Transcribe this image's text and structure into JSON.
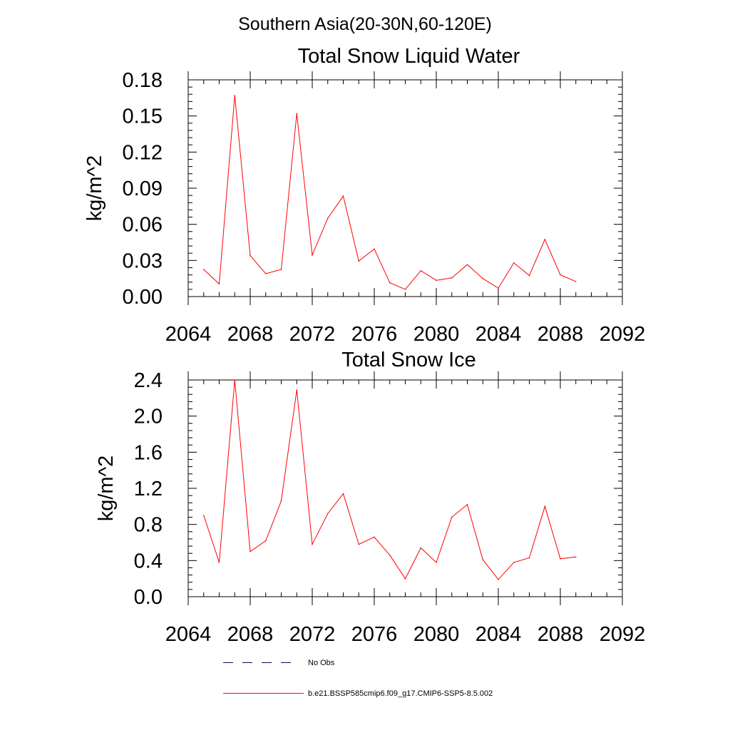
{
  "figure": {
    "suptitle": "Southern Asia(20-30N,60-120E)"
  },
  "chart_data": [
    {
      "type": "line",
      "title": "Total Snow Liquid Water",
      "xlabel": "",
      "ylabel": "kg/m^2",
      "xlim": [
        2064,
        2092
      ],
      "ylim": [
        0,
        0.18
      ],
      "xticks": [
        2064,
        2068,
        2072,
        2076,
        2080,
        2084,
        2088,
        2092
      ],
      "yticks": [
        0.0,
        0.03,
        0.06,
        0.09,
        0.12,
        0.15,
        0.18
      ],
      "ytick_labels": [
        "0.00",
        "0.03",
        "0.06",
        "0.09",
        "0.12",
        "0.15",
        "0.18"
      ],
      "x_minor_step": 1,
      "y_minor_step": 0.006,
      "series": [
        {
          "name": "b.e21.BSSP585cmip6.f09_g17.CMIP6-SSP5-8.5.002",
          "color": "#ff0000",
          "x": [
            2065,
            2066,
            2067,
            2068,
            2069,
            2070,
            2071,
            2072,
            2073,
            2074,
            2075,
            2076,
            2077,
            2078,
            2079,
            2080,
            2081,
            2082,
            2083,
            2084,
            2085,
            2086,
            2087,
            2088,
            2089
          ],
          "values": [
            0.0225,
            0.0105,
            0.167,
            0.034,
            0.019,
            0.0225,
            0.152,
            0.0345,
            0.065,
            0.0835,
            0.0295,
            0.0395,
            0.0115,
            0.006,
            0.0215,
            0.0135,
            0.0155,
            0.0265,
            0.015,
            0.007,
            0.028,
            0.0175,
            0.0475,
            0.018,
            0.0125
          ]
        }
      ]
    },
    {
      "type": "line",
      "title": "Total Snow Ice",
      "xlabel": "",
      "ylabel": "kg/m^2",
      "xlim": [
        2064,
        2092
      ],
      "ylim": [
        0,
        2.4
      ],
      "xticks": [
        2064,
        2068,
        2072,
        2076,
        2080,
        2084,
        2088,
        2092
      ],
      "yticks": [
        0.0,
        0.4,
        0.8,
        1.2,
        1.6,
        2.0,
        2.4
      ],
      "ytick_labels": [
        "0.0",
        "0.4",
        "0.8",
        "1.2",
        "1.6",
        "2.0",
        "2.4"
      ],
      "x_minor_step": 1,
      "y_minor_step": 0.08,
      "series": [
        {
          "name": "b.e21.BSSP585cmip6.f09_g17.CMIP6-SSP5-8.5.002",
          "color": "#ff0000",
          "x": [
            2065,
            2066,
            2067,
            2068,
            2069,
            2070,
            2071,
            2072,
            2073,
            2074,
            2075,
            2076,
            2077,
            2078,
            2079,
            2080,
            2081,
            2082,
            2083,
            2084,
            2085,
            2086,
            2087,
            2088,
            2089
          ],
          "values": [
            0.9,
            0.38,
            2.4,
            0.5,
            0.62,
            1.06,
            2.29,
            0.58,
            0.92,
            1.14,
            0.58,
            0.66,
            0.46,
            0.2,
            0.54,
            0.38,
            0.88,
            1.02,
            0.41,
            0.19,
            0.38,
            0.43,
            1.0,
            0.42,
            0.44
          ]
        }
      ]
    }
  ],
  "legend": {
    "placement": "bottom",
    "entries": [
      {
        "label": "No Obs",
        "style": "dashed",
        "color": "#0b0b5a"
      },
      {
        "label": "b.e21.BSSP585cmip6.f09_g17.CMIP6-SSP5-8.5.002",
        "style": "solid",
        "color": "#ff0000"
      }
    ]
  }
}
